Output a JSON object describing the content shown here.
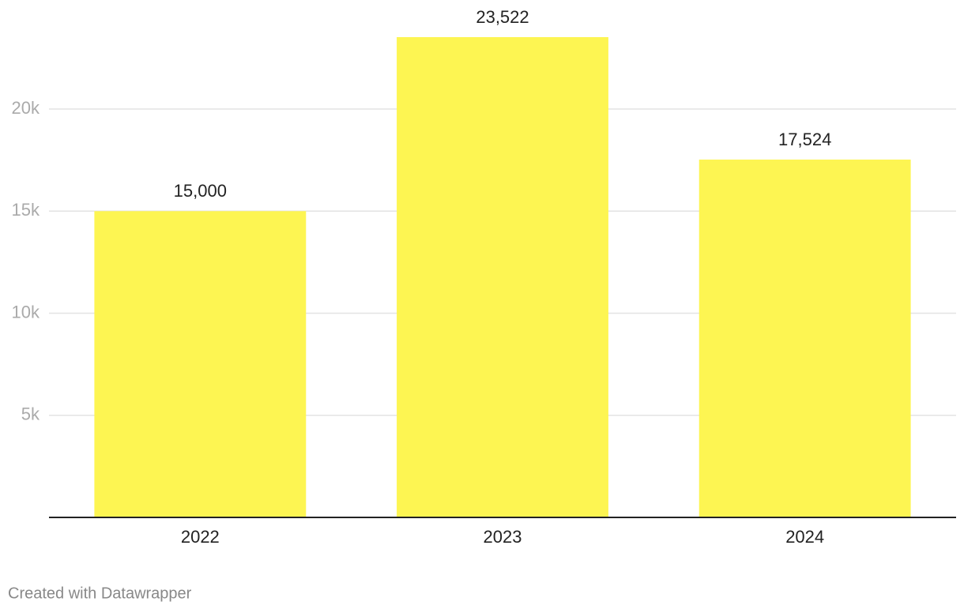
{
  "chart_data": {
    "type": "bar",
    "categories": [
      "2022",
      "2023",
      "2024"
    ],
    "values": [
      15000,
      23522,
      17524
    ],
    "value_labels": [
      "15,000",
      "23,522",
      "17,524"
    ],
    "color": "#fdf552",
    "ylim": [
      0,
      23522
    ],
    "yticks": [
      {
        "value": 5000,
        "label": "5k"
      },
      {
        "value": 10000,
        "label": "10k"
      },
      {
        "value": 15000,
        "label": "15k"
      },
      {
        "value": 20000,
        "label": "20k"
      }
    ],
    "grid": true,
    "credit": "Created with Datawrapper"
  }
}
